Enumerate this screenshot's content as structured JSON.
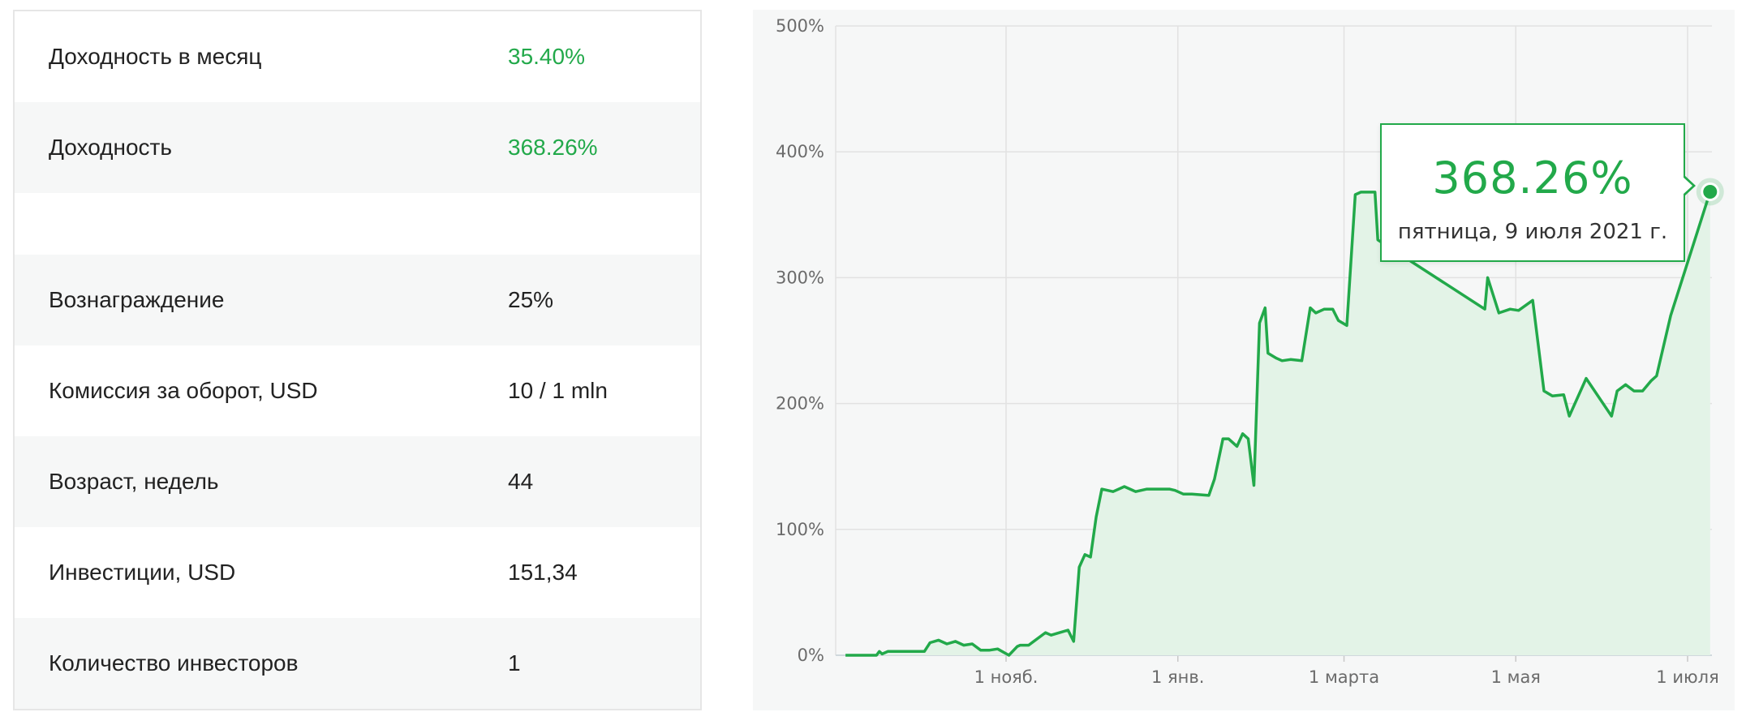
{
  "stats": {
    "rows": [
      {
        "label": "Доходность в месяц",
        "value": "35.40%",
        "accent": true
      },
      {
        "label": "Доходность",
        "value": "368.26%",
        "accent": true
      },
      {
        "label": "",
        "value": "",
        "accent": false
      },
      {
        "label": "Вознаграждение",
        "value": "25%",
        "accent": false
      },
      {
        "label": "Комиссия за оборот, USD",
        "value": "10 / 1 mln",
        "accent": false
      },
      {
        "label": "Возраст, недель",
        "value": "44",
        "accent": false
      },
      {
        "label": "Инвестиции, USD",
        "value": "151,34",
        "accent": false
      },
      {
        "label": "Количество инвесторов",
        "value": "1",
        "accent": false
      }
    ]
  },
  "colors": {
    "accent": "#22a94a",
    "fill": "#e3f3e7",
    "grid": "#e2e2e2",
    "panel": "#f6f7f7"
  },
  "chart_data": {
    "type": "area",
    "ylim": [
      0,
      500
    ],
    "y_ticks": [
      "0%",
      "100%",
      "200%",
      "300%",
      "400%",
      "500%"
    ],
    "x_ticks": [
      {
        "label": "1 нояб.",
        "date": "2020-11-01"
      },
      {
        "label": "1 янв.",
        "date": "2021-01-01"
      },
      {
        "label": "1 марта",
        "date": "2021-03-01"
      },
      {
        "label": "1 мая",
        "date": "2021-05-01"
      },
      {
        "label": "1 июля",
        "date": "2021-07-01"
      }
    ],
    "series": [
      {
        "x": [
          "2020-09-05",
          "2020-09-16",
          "2020-09-17",
          "2020-09-18",
          "2020-09-20",
          "2020-09-27",
          "2020-10-03",
          "2020-10-05",
          "2020-10-08",
          "2020-10-11",
          "2020-10-14",
          "2020-10-17",
          "2020-10-20",
          "2020-10-23",
          "2020-10-26",
          "2020-10-29",
          "2020-11-02",
          "2020-11-05",
          "2020-11-06",
          "2020-11-09",
          "2020-11-15",
          "2020-11-17",
          "2020-11-20",
          "2020-11-23",
          "2020-11-25",
          "2020-11-27",
          "2020-11-29",
          "2020-12-01",
          "2020-12-03",
          "2020-12-05",
          "2020-12-09",
          "2020-12-13",
          "2020-12-17",
          "2020-12-21",
          "2020-12-29",
          "2020-12-31",
          "2021-01-03",
          "2021-01-06",
          "2021-01-12",
          "2021-01-14",
          "2021-01-17",
          "2021-01-19",
          "2021-01-22",
          "2021-01-24",
          "2021-01-26",
          "2021-01-28",
          "2021-01-30",
          "2021-02-01",
          "2021-02-02",
          "2021-02-05",
          "2021-02-07",
          "2021-02-10",
          "2021-02-14",
          "2021-02-17",
          "2021-02-19",
          "2021-02-22",
          "2021-02-25",
          "2021-02-27",
          "2021-03-02",
          "2021-03-05",
          "2021-03-07",
          "2021-03-12",
          "2021-03-13",
          "2021-04-20",
          "2021-04-21",
          "2021-04-25",
          "2021-04-29",
          "2021-05-02",
          "2021-05-07",
          "2021-05-11",
          "2021-05-14",
          "2021-05-18",
          "2021-05-20",
          "2021-05-26",
          "2021-06-04",
          "2021-06-06",
          "2021-06-09",
          "2021-06-12",
          "2021-06-15",
          "2021-06-18",
          "2021-06-20",
          "2021-06-25",
          "2021-07-09"
        ],
        "values": [
          0,
          0,
          3,
          1,
          3,
          3,
          3,
          10,
          12,
          9,
          11,
          8,
          9,
          4,
          4,
          5,
          0,
          7,
          8,
          8,
          18,
          16,
          18,
          20,
          11,
          70,
          80,
          78,
          110,
          132,
          130,
          134,
          130,
          132,
          132,
          131,
          128,
          128,
          127,
          140,
          172,
          172,
          166,
          176,
          172,
          135,
          264,
          276,
          240,
          236,
          234,
          235,
          234,
          276,
          272,
          275,
          275,
          266,
          262,
          366,
          368,
          368,
          330,
          275,
          300,
          272,
          275,
          274,
          282,
          210,
          206,
          207,
          190,
          220,
          190,
          210,
          215,
          210,
          210,
          218,
          222,
          270,
          368.26
        ]
      }
    ],
    "tooltip": {
      "value": "368.26%",
      "date": "пятница, 9 июля 2021 г."
    }
  }
}
